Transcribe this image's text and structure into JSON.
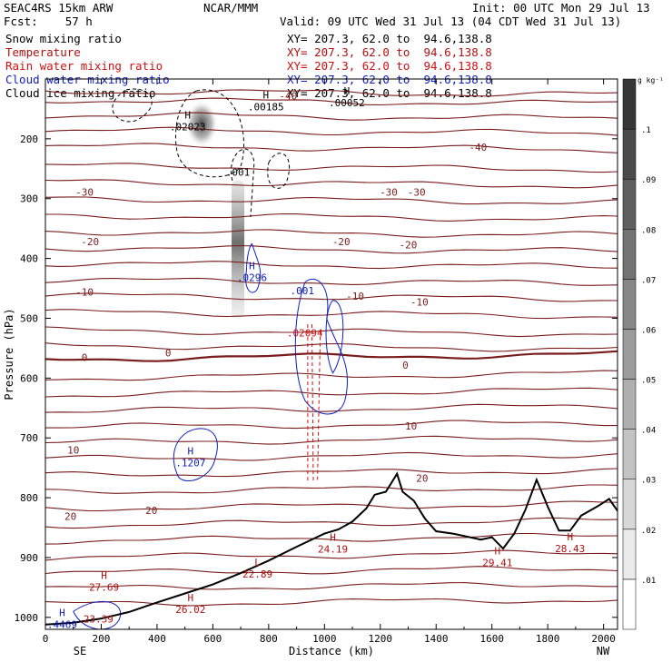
{
  "header": {
    "model": "SEAC4RS 15km ARW",
    "org": "NCAR/MMM",
    "init": "Init: 00 UTC Mon 29 Jul 13",
    "fcst": "Fcst:    57 h",
    "valid": "Valid: 09 UTC Wed 31 Jul 13 (04 CDT Wed 31 Jul 13)"
  },
  "fields": [
    {
      "name": "Snow mixing ratio",
      "xy": "XY= 207.3, 62.0 to  94.6,138.8",
      "color": "#000000"
    },
    {
      "name": "Temperature",
      "xy": "XY= 207.3, 62.0 to  94.6,138.8",
      "color": "#b01010"
    },
    {
      "name": "Rain water mixing ratio",
      "xy": "XY= 207.3, 62.0 to  94.6,138.8",
      "color": "#d01010"
    },
    {
      "name": "Cloud water mixing ratio",
      "xy": "XY= 207.3, 62.0 to  94.6,138.8",
      "color": "#1020c0"
    },
    {
      "name": "Cloud ice mixing ratio",
      "xy": "XY= 207.3, 62.0 to  94.6,138.8",
      "color": "#000000"
    }
  ],
  "chart_data": {
    "type": "cross-section",
    "xlabel": "Distance (km)",
    "ylabel": "Pressure (hPa)",
    "xlim": [
      0,
      2050
    ],
    "ylim": [
      1020,
      100
    ],
    "xticks": [
      0,
      200,
      400,
      600,
      800,
      1000,
      1200,
      1400,
      1600,
      1800,
      2000
    ],
    "yticks": [
      200,
      300,
      400,
      500,
      600,
      700,
      800,
      900,
      1000
    ],
    "x_end_labels": {
      "left": "SE",
      "right": "NW"
    },
    "colorbar": {
      "unit": "g kg⁻¹",
      "ticks": [
        ".01",
        ".02",
        ".03",
        ".04",
        ".05",
        ".06",
        ".07",
        ".08",
        ".09",
        ".1"
      ]
    },
    "temperature_contours": [
      {
        "value": -40,
        "label": "-40"
      },
      {
        "value": -30,
        "label": "-30"
      },
      {
        "value": -20,
        "label": "-20"
      },
      {
        "value": -10,
        "label": "-10"
      },
      {
        "value": 0,
        "label": "0"
      },
      {
        "value": 10,
        "label": "10"
      },
      {
        "value": 20,
        "label": "20"
      }
    ],
    "temperature_labels": [
      {
        "x": 870,
        "p": 128,
        "text": "-40"
      },
      {
        "x": 1550,
        "p": 214,
        "text": "-40"
      },
      {
        "x": 140,
        "p": 289,
        "text": "-30"
      },
      {
        "x": 1230,
        "p": 289,
        "text": "-30"
      },
      {
        "x": 1330,
        "p": 289,
        "text": "-30"
      },
      {
        "x": 160,
        "p": 372,
        "text": "-20"
      },
      {
        "x": 1060,
        "p": 372,
        "text": "-20"
      },
      {
        "x": 1300,
        "p": 377,
        "text": "-20"
      },
      {
        "x": 140,
        "p": 456,
        "text": "-10"
      },
      {
        "x": 1110,
        "p": 463,
        "text": "-10"
      },
      {
        "x": 1340,
        "p": 473,
        "text": "-10"
      },
      {
        "x": 140,
        "p": 565,
        "text": "0"
      },
      {
        "x": 440,
        "p": 558,
        "text": "0"
      },
      {
        "x": 1290,
        "p": 578,
        "text": "0"
      },
      {
        "x": 1310,
        "p": 680,
        "text": "10"
      },
      {
        "x": 100,
        "p": 720,
        "text": "10"
      },
      {
        "x": 1350,
        "p": 767,
        "text": "20"
      },
      {
        "x": 90,
        "p": 831,
        "text": "20"
      },
      {
        "x": 380,
        "p": 821,
        "text": "20"
      }
    ],
    "extrema_labels": [
      {
        "kind": "H",
        "x": 510,
        "p": 178,
        "value": ".02023",
        "color": "#000000"
      },
      {
        "kind": "H",
        "x": 790,
        "p": 145,
        "value": ".00185",
        "color": "#000000"
      },
      {
        "kind": "H",
        "x": 1080,
        "p": 138,
        "value": ".00052",
        "color": "#000000"
      },
      {
        "kind": "",
        "x": 690,
        "p": 254,
        "value": ".001",
        "color": "#000000"
      },
      {
        "kind": "H",
        "x": 740,
        "p": 430,
        "value": ".0296",
        "color": "#1020c0"
      },
      {
        "kind": "",
        "x": 920,
        "p": 452,
        "value": ".001",
        "color": "#1020c0"
      },
      {
        "kind": "",
        "x": 930,
        "p": 523,
        "value": ".02094",
        "color": "#d01010"
      },
      {
        "kind": "H",
        "x": 520,
        "p": 740,
        "value": ".1207",
        "color": "#1020c0"
      },
      {
        "kind": "H",
        "x": 60,
        "p": 1010,
        "value": ".4469",
        "color": "#1020c0"
      },
      {
        "kind": "",
        "x": 190,
        "p": 1001,
        "value": "23.39",
        "color": "#b01010"
      },
      {
        "kind": "H",
        "x": 210,
        "p": 948,
        "value": "27.69",
        "color": "#b01010"
      },
      {
        "kind": "H",
        "x": 520,
        "p": 985,
        "value": "26.02",
        "color": "#b01010"
      },
      {
        "kind": "L",
        "x": 760,
        "p": 926,
        "value": "22.89",
        "color": "#b01010"
      },
      {
        "kind": "H",
        "x": 1030,
        "p": 884,
        "value": "24.19",
        "color": "#b01010"
      },
      {
        "kind": "H",
        "x": 1620,
        "p": 907,
        "value": "29.41",
        "color": "#b01010"
      },
      {
        "kind": "H",
        "x": 1880,
        "p": 883,
        "value": "28.43",
        "color": "#b01010"
      }
    ],
    "terrain": [
      [
        0,
        1012
      ],
      [
        100,
        1009
      ],
      [
        200,
        1002
      ],
      [
        300,
        991
      ],
      [
        400,
        975
      ],
      [
        500,
        960
      ],
      [
        600,
        945
      ],
      [
        700,
        926
      ],
      [
        800,
        905
      ],
      [
        900,
        882
      ],
      [
        1000,
        860
      ],
      [
        1050,
        853
      ],
      [
        1100,
        840
      ],
      [
        1150,
        818
      ],
      [
        1180,
        795
      ],
      [
        1220,
        790
      ],
      [
        1240,
        775
      ],
      [
        1260,
        760
      ],
      [
        1280,
        790
      ],
      [
        1320,
        805
      ],
      [
        1360,
        835
      ],
      [
        1400,
        856
      ],
      [
        1460,
        860
      ],
      [
        1500,
        864
      ],
      [
        1560,
        870
      ],
      [
        1600,
        866
      ],
      [
        1640,
        885
      ],
      [
        1680,
        860
      ],
      [
        1720,
        820
      ],
      [
        1760,
        770
      ],
      [
        1800,
        815
      ],
      [
        1840,
        855
      ],
      [
        1880,
        855
      ],
      [
        1920,
        830
      ],
      [
        1980,
        814
      ],
      [
        2020,
        802
      ],
      [
        2050,
        822
      ]
    ]
  }
}
